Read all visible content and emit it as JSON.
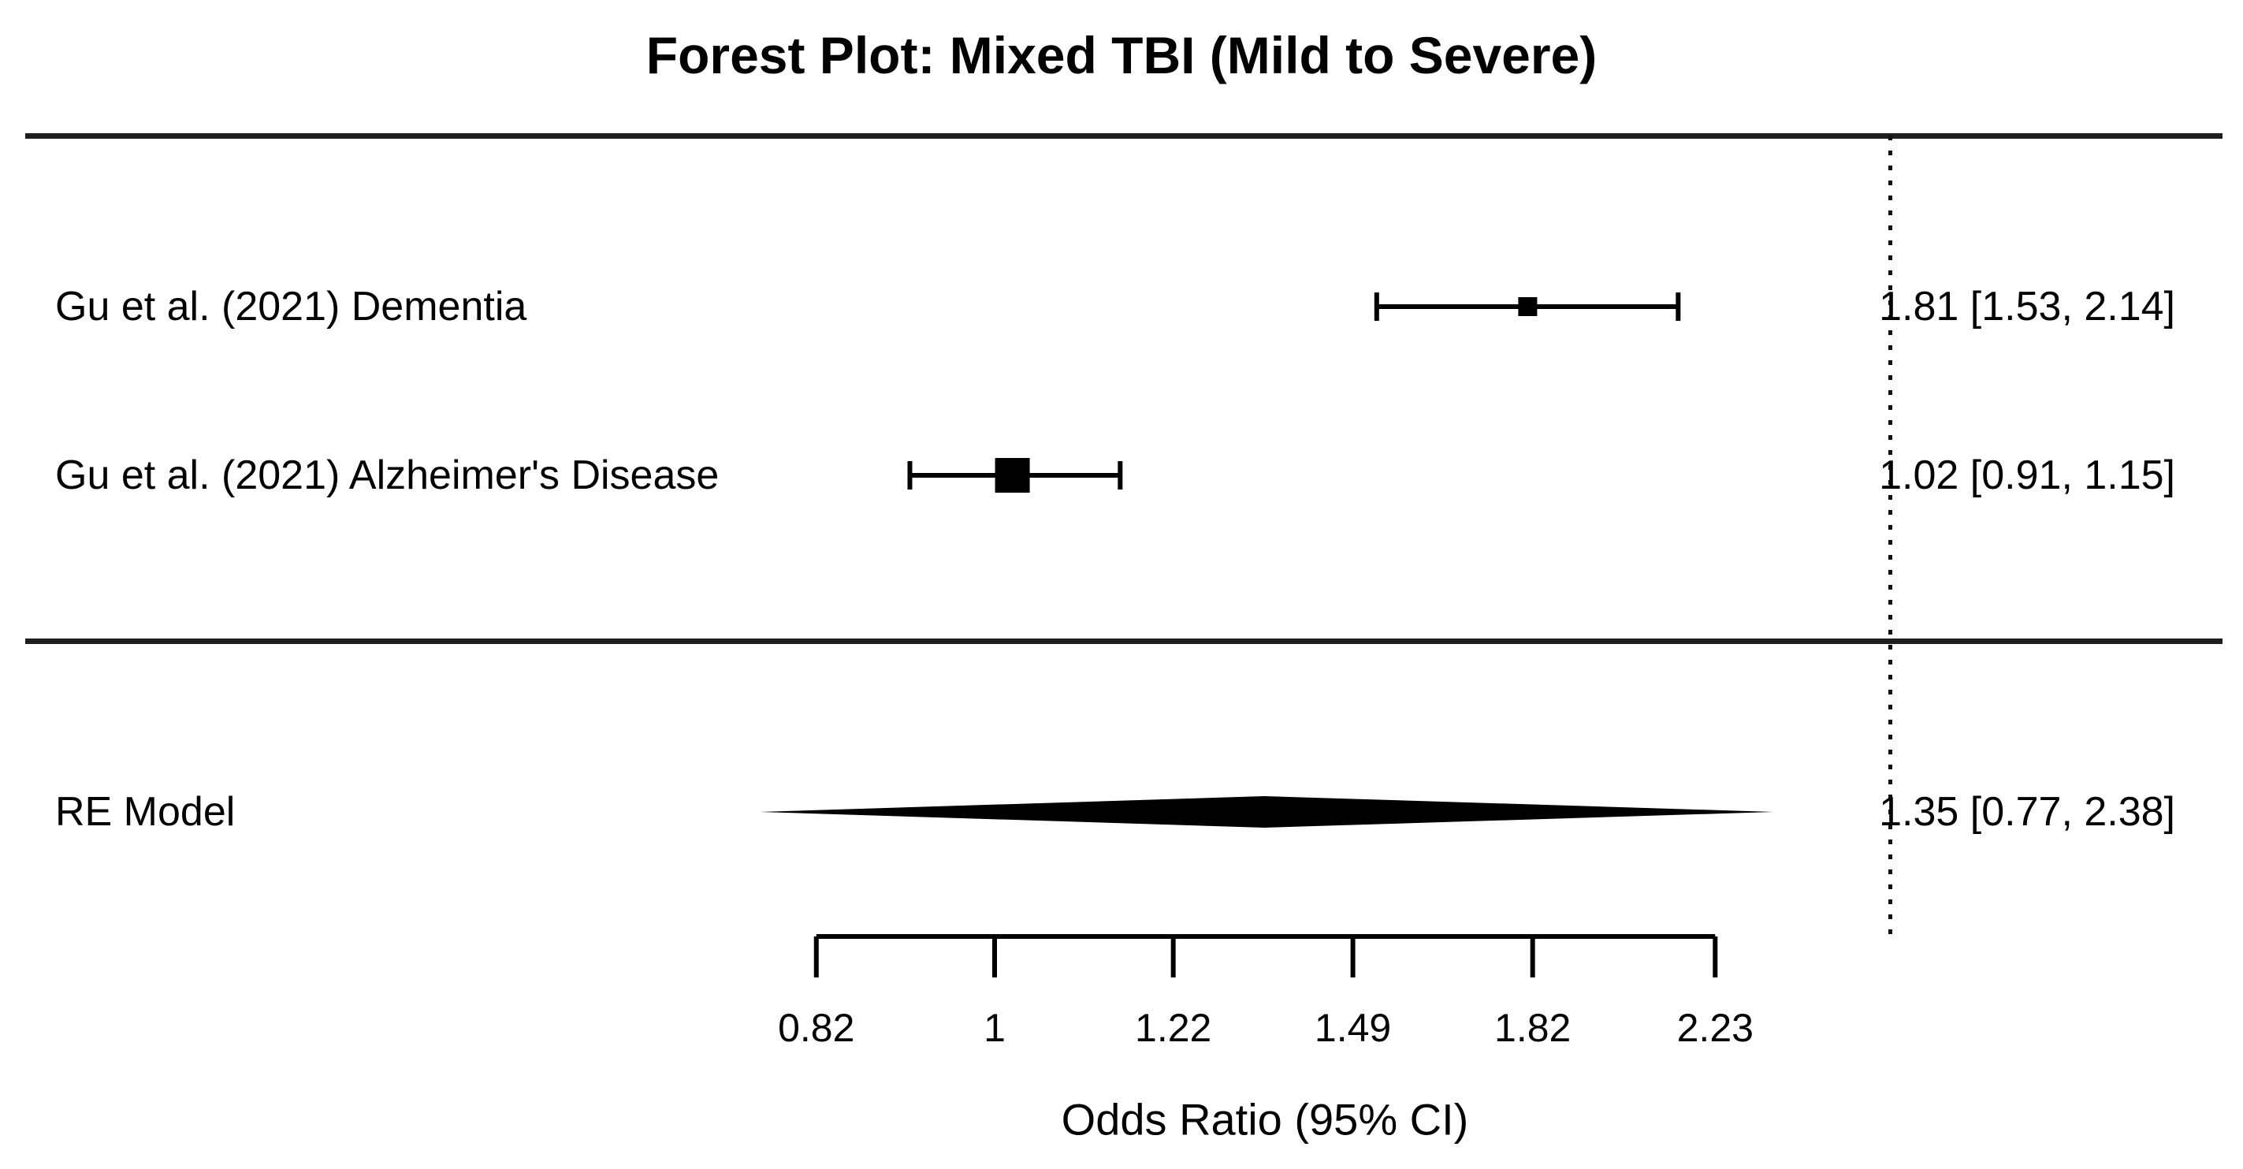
{
  "page": {
    "background_color": "#ffffff",
    "ink_color": "#000000"
  },
  "chart_data": {
    "type": "forest",
    "title": "Forest Plot: Mixed TBI (Mild to Severe)",
    "xlabel": "Odds Ratio (95% CI)",
    "x_scale": "log",
    "axis": {
      "tick_values": [
        0.82,
        1,
        1.22,
        1.49,
        1.82,
        2.23
      ],
      "tick_labels": [
        "0.82",
        "1",
        "1.22",
        "1.49",
        "1.82",
        "2.23"
      ],
      "xlim": [
        0.82,
        2.23
      ]
    },
    "reference_line": {
      "style": "dotted",
      "x_value": 2.71
    },
    "rows": [
      {
        "label": "Gu et al. (2021) Dementia",
        "or": 1.81,
        "ci_low": 1.53,
        "ci_high": 2.14,
        "annotation": "1.81 [1.53, 2.14]",
        "marker": "square",
        "marker_size": "small"
      },
      {
        "label": "Gu et al. (2021) Alzheimer's Disease",
        "or": 1.02,
        "ci_low": 0.91,
        "ci_high": 1.15,
        "annotation": "1.02 [0.91, 1.15]",
        "marker": "square",
        "marker_size": "large"
      }
    ],
    "summary": {
      "label": "RE Model",
      "or": 1.35,
      "ci_low": 0.77,
      "ci_high": 2.38,
      "annotation": "1.35 [0.77, 2.38]",
      "marker": "diamond"
    }
  }
}
